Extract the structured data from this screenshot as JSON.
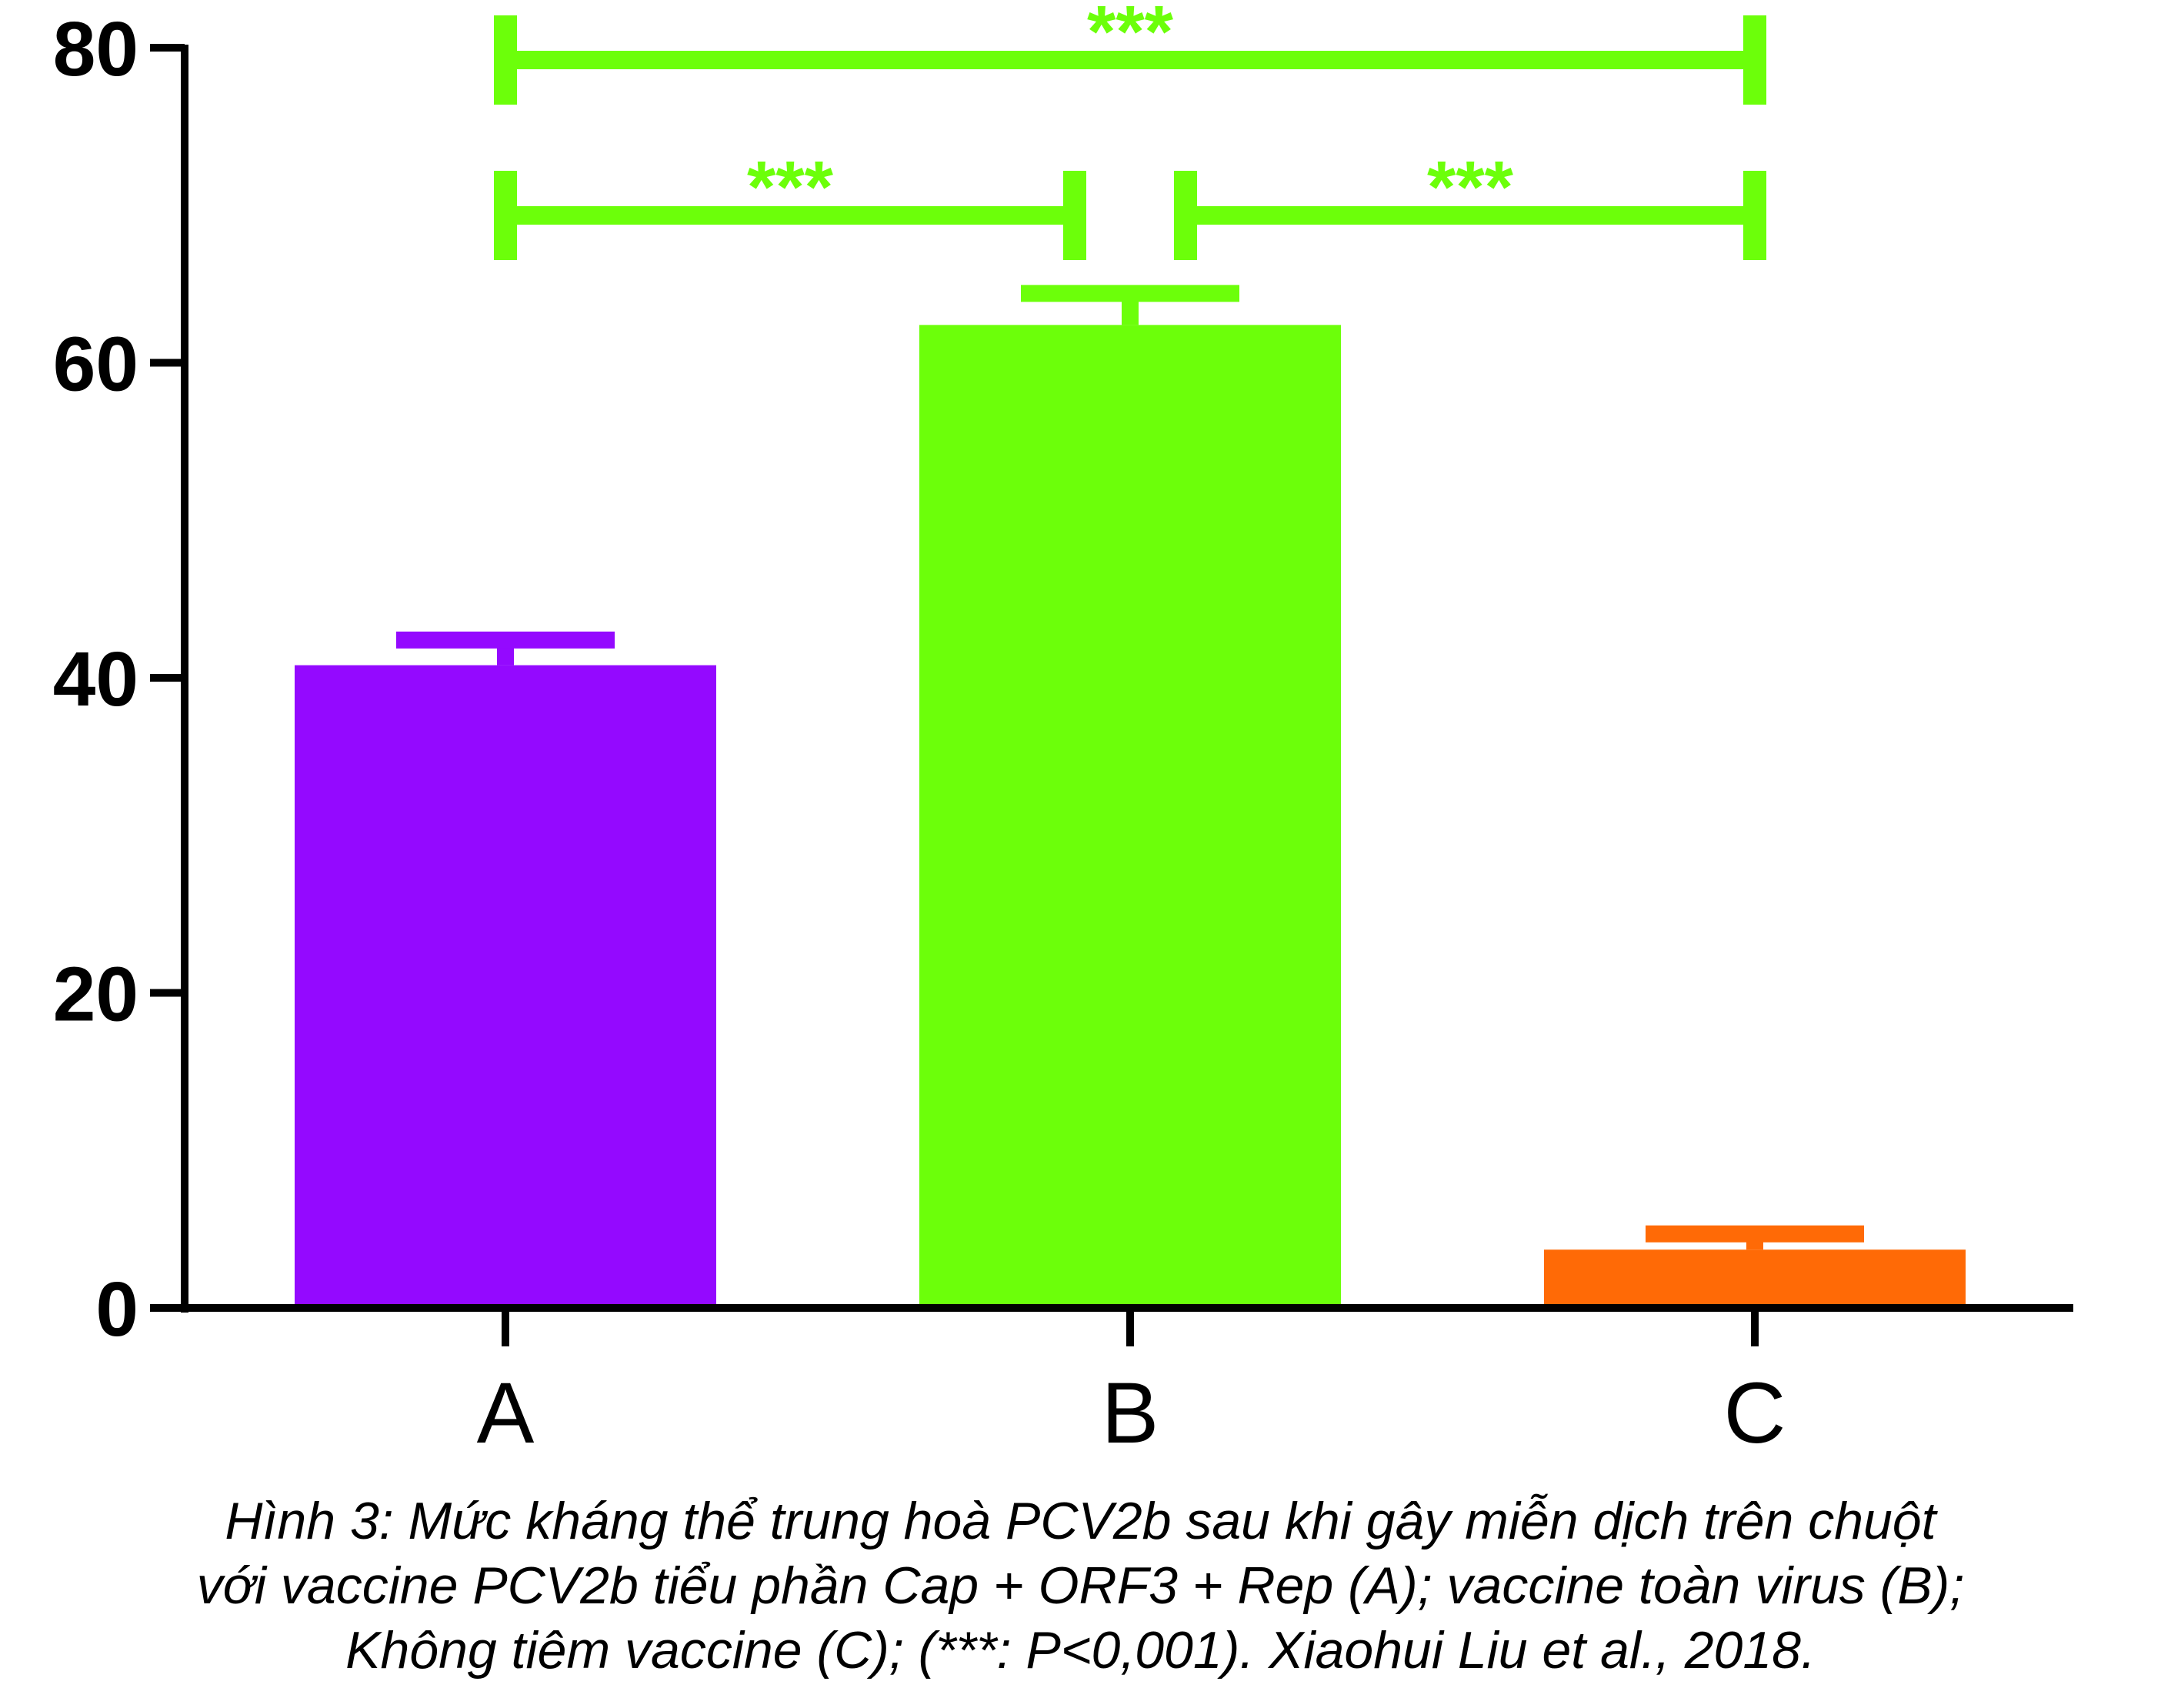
{
  "chart_data": {
    "type": "bar",
    "categories": [
      "A",
      "B",
      "C"
    ],
    "values": [
      40.8,
      62.4,
      3.7
    ],
    "errors": [
      1.6,
      2.0,
      1.0
    ],
    "colors": [
      "#9409FF",
      "#6CFF0A",
      "#FF6A06"
    ],
    "ylim": [
      0,
      80
    ],
    "yticks": [
      "0",
      "20",
      "40",
      "60",
      "80"
    ],
    "significance": [
      {
        "from": 0,
        "to": 1,
        "label": "***",
        "level": 1
      },
      {
        "from": 1,
        "to": 2,
        "label": "***",
        "level": 1
      },
      {
        "from": 0,
        "to": 2,
        "label": "***",
        "level": 2
      }
    ],
    "significance_color": "#6CFF0A"
  },
  "caption": {
    "line1": "Hình 3: Mức kháng thể trung hoà PCV2b sau khi gây miễn dịch trên chuột",
    "line2": "với vaccine PCV2b tiểu phần Cap + ORF3 + Rep (A); vaccine toàn virus (B);",
    "line3": "Không tiêm vaccine (C); (***: P<0,001). Xiaohui Liu et al., 2018."
  }
}
